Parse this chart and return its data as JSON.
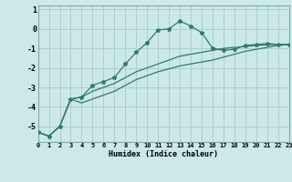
{
  "xlabel": "Humidex (Indice chaleur)",
  "ylabel": "",
  "background_color": "#cce8e8",
  "grid_color": "#aad0d0",
  "line_color": "#2e7b6e",
  "x_values": [
    0,
    1,
    2,
    3,
    4,
    5,
    6,
    7,
    8,
    9,
    10,
    11,
    12,
    13,
    14,
    15,
    16,
    17,
    18,
    19,
    20,
    21,
    22,
    23
  ],
  "line1_y": [
    -5.3,
    -5.5,
    -5.0,
    -3.6,
    -3.5,
    -2.9,
    -2.7,
    -2.5,
    -1.8,
    -1.2,
    -0.7,
    -0.05,
    0.0,
    0.4,
    0.15,
    -0.2,
    -1.0,
    -1.1,
    -1.05,
    -0.85,
    -0.8,
    -0.75,
    -0.8,
    -0.8
  ],
  "line2_y": [
    -5.3,
    -5.5,
    -5.0,
    -3.6,
    -3.5,
    -3.2,
    -3.0,
    -2.8,
    -2.5,
    -2.2,
    -2.0,
    -1.8,
    -1.6,
    -1.4,
    -1.3,
    -1.2,
    -1.1,
    -1.0,
    -0.95,
    -0.9,
    -0.85,
    -0.82,
    -0.8,
    -0.8
  ],
  "line3_y": [
    -5.3,
    -5.5,
    -5.0,
    -3.6,
    -3.8,
    -3.6,
    -3.4,
    -3.2,
    -2.9,
    -2.6,
    -2.4,
    -2.2,
    -2.05,
    -1.9,
    -1.8,
    -1.7,
    -1.6,
    -1.45,
    -1.3,
    -1.15,
    -1.05,
    -0.95,
    -0.85,
    -0.8
  ],
  "xlim": [
    0,
    23
  ],
  "ylim": [
    -5.8,
    1.2
  ],
  "yticks": [
    1,
    0,
    -1,
    -2,
    -3,
    -4,
    -5
  ],
  "xtick_labels": [
    "0",
    "1",
    "2",
    "3",
    "4",
    "5",
    "6",
    "7",
    "8",
    "9",
    "10",
    "11",
    "12",
    "13",
    "14",
    "15",
    "16",
    "17",
    "18",
    "19",
    "20",
    "21",
    "22",
    "23"
  ]
}
